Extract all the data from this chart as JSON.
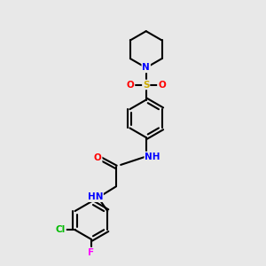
{
  "bg_color": "#e8e8e8",
  "bond_color": "#000000",
  "bond_width": 1.5,
  "atom_colors": {
    "N": "#0000ff",
    "O": "#ff0000",
    "S": "#ccaa00",
    "Cl": "#00bb00",
    "F": "#ff00ff",
    "C": "#000000",
    "H": "#555555"
  },
  "font_size": 7.5,
  "fig_size": [
    3.0,
    3.0
  ],
  "dpi": 100
}
